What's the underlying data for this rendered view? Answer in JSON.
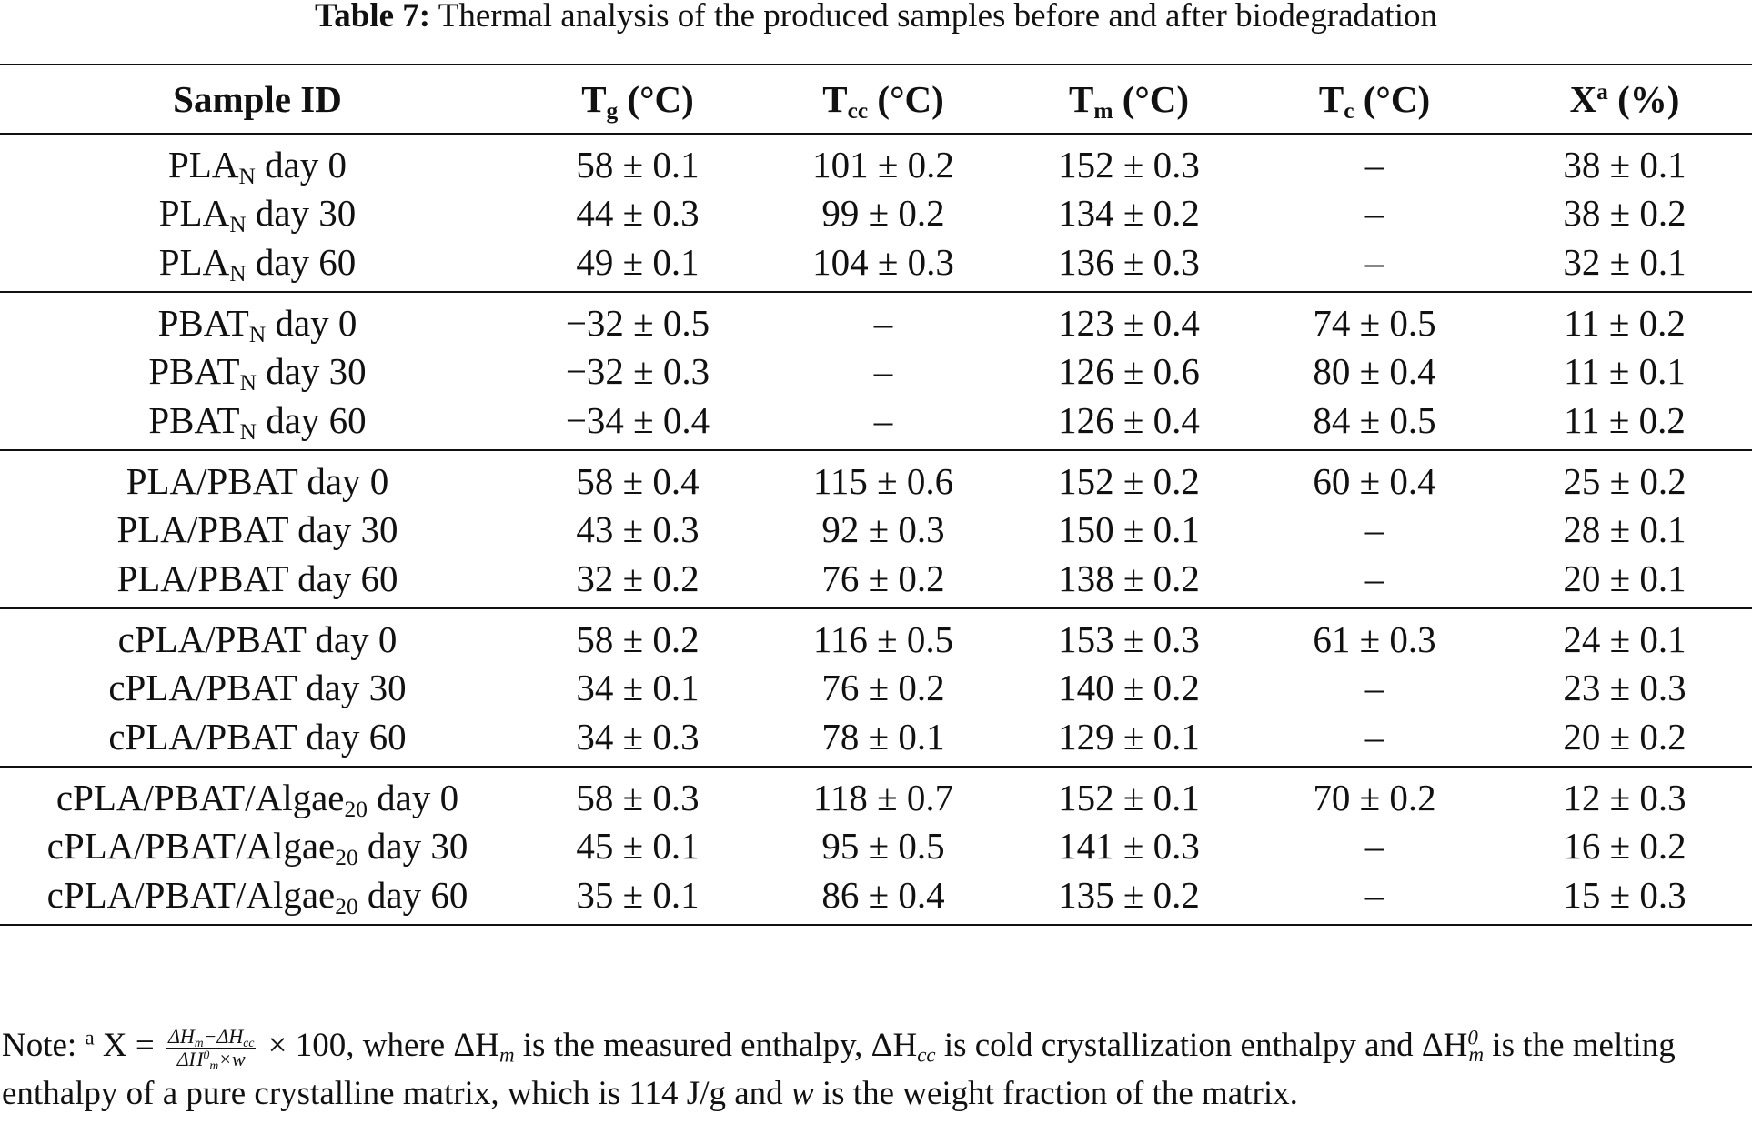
{
  "caption": {
    "label": "Table 7:",
    "text": "Thermal analysis of the produced samples before and after biodegradation"
  },
  "headers": [
    {
      "base": "Sample ID",
      "sub": "",
      "sup": "",
      "tail": ""
    },
    {
      "base": "T",
      "sub": "g",
      "sup": "",
      "tail": " (°C)"
    },
    {
      "base": "T",
      "sub": "cc",
      "sup": "",
      "tail": " (°C)"
    },
    {
      "base": "T",
      "sub": "m",
      "sup": "",
      "tail": " (°C)"
    },
    {
      "base": "T",
      "sub": "c",
      "sup": "",
      "tail": " (°C)"
    },
    {
      "base": "X",
      "sub": "",
      "sup": "a",
      "tail": " (%)"
    }
  ],
  "groups": [
    {
      "rows": [
        {
          "name": "PLA",
          "name_sub": "N",
          "day": "day 0",
          "tg": "58 ± 0.1",
          "tcc": "101 ± 0.2",
          "tm": "152 ± 0.3",
          "tc": "–",
          "x": "38 ± 0.1"
        },
        {
          "name": "PLA",
          "name_sub": "N",
          "day": "day 30",
          "tg": "44 ± 0.3",
          "tcc": "99 ± 0.2",
          "tm": "134 ± 0.2",
          "tc": "–",
          "x": "38 ± 0.2"
        },
        {
          "name": "PLA",
          "name_sub": "N",
          "day": "day 60",
          "tg": "49 ± 0.1",
          "tcc": "104 ± 0.3",
          "tm": "136 ± 0.3",
          "tc": "–",
          "x": "32 ± 0.1"
        }
      ]
    },
    {
      "rows": [
        {
          "name": "PBAT",
          "name_sub": "N",
          "day": "day 0",
          "tg": "−32 ± 0.5",
          "tcc": "–",
          "tm": "123 ± 0.4",
          "tc": "74 ± 0.5",
          "x": "11 ± 0.2"
        },
        {
          "name": "PBAT",
          "name_sub": "N",
          "day": "day 30",
          "tg": "−32 ± 0.3",
          "tcc": "–",
          "tm": "126 ± 0.6",
          "tc": "80 ± 0.4",
          "x": "11 ± 0.1"
        },
        {
          "name": "PBAT",
          "name_sub": "N",
          "day": "day 60",
          "tg": "−34 ± 0.4",
          "tcc": "–",
          "tm": "126 ± 0.4",
          "tc": "84 ± 0.5",
          "x": "11 ± 0.2"
        }
      ]
    },
    {
      "rows": [
        {
          "name": "PLA/PBAT",
          "name_sub": "",
          "day": "day 0",
          "tg": "58 ± 0.4",
          "tcc": "115 ± 0.6",
          "tm": "152 ± 0.2",
          "tc": "60 ± 0.4",
          "x": "25 ± 0.2"
        },
        {
          "name": "PLA/PBAT",
          "name_sub": "",
          "day": "day 30",
          "tg": "43 ± 0.3",
          "tcc": "92 ± 0.3",
          "tm": "150 ± 0.1",
          "tc": "–",
          "x": "28 ± 0.1"
        },
        {
          "name": "PLA/PBAT",
          "name_sub": "",
          "day": "day 60",
          "tg": "32 ± 0.2",
          "tcc": "76 ± 0.2",
          "tm": "138 ± 0.2",
          "tc": "–",
          "x": "20 ± 0.1"
        }
      ]
    },
    {
      "rows": [
        {
          "name": "cPLA/PBAT",
          "name_sub": "",
          "day": "day 0",
          "tg": "58 ± 0.2",
          "tcc": "116 ± 0.5",
          "tm": "153 ± 0.3",
          "tc": "61 ± 0.3",
          "x": "24 ± 0.1"
        },
        {
          "name": "cPLA/PBAT",
          "name_sub": "",
          "day": "day 30",
          "tg": "34 ± 0.1",
          "tcc": "76 ± 0.2",
          "tm": "140 ± 0.2",
          "tc": "–",
          "x": "23 ± 0.3"
        },
        {
          "name": "cPLA/PBAT",
          "name_sub": "",
          "day": "day 60",
          "tg": "34 ± 0.3",
          "tcc": "78 ± 0.1",
          "tm": "129 ± 0.1",
          "tc": "–",
          "x": "20 ± 0.2"
        }
      ]
    },
    {
      "rows": [
        {
          "name": "cPLA/PBAT/Algae",
          "name_sub": "20",
          "day": "day 0",
          "tg": "58 ± 0.3",
          "tcc": "118 ± 0.7",
          "tm": "152 ± 0.1",
          "tc": "70 ± 0.2",
          "x": "12 ± 0.3"
        },
        {
          "name": "cPLA/PBAT/Algae",
          "name_sub": "20",
          "day": "day 30",
          "tg": "45 ± 0.1",
          "tcc": "95 ± 0.5",
          "tm": "141 ± 0.3",
          "tc": "–",
          "x": "16 ± 0.2"
        },
        {
          "name": "cPLA/PBAT/Algae",
          "name_sub": "20",
          "day": "day 60",
          "tg": "35 ± 0.1",
          "tcc": "86 ± 0.4",
          "tm": "135 ± 0.2",
          "tc": "–",
          "x": "15 ± 0.3"
        }
      ]
    }
  ],
  "note": {
    "prefix": "Note:",
    "marker": "a",
    "x_eq": "X =",
    "frac_num": "ΔH_m − ΔH_cc",
    "frac_den": "ΔH⁰_m × w",
    "times": "× 100, where",
    "t1": "is the measured enthalpy,",
    "t2": "is cold crystallization enthalpy and",
    "t3": "is the melting enthalpy of a pure crystalline matrix, which is 114 J/g and",
    "t4": "is the weight fraction of the matrix.",
    "dhm": "ΔH",
    "dhm_sub": "m",
    "dhcc": "ΔH",
    "dhcc_sub": "cc",
    "dh0": "ΔH",
    "dh0_sup": "0",
    "dh0_sub": "m",
    "w": "w"
  }
}
